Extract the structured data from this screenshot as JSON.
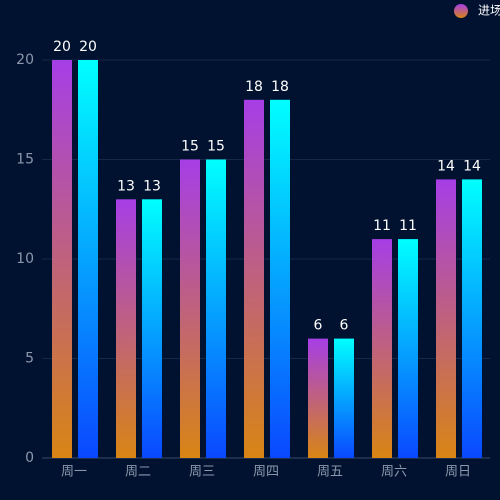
{
  "chart_data": {
    "type": "bar",
    "categories": [
      "周一",
      "周二",
      "周三",
      "周四",
      "周五",
      "周六",
      "周日"
    ],
    "series": [
      {
        "name": "进场",
        "color": [
          "#a63ee6",
          "#d88514"
        ],
        "values": [
          20,
          13,
          15,
          18,
          6,
          11,
          14
        ]
      },
      {
        "color": [
          "#00ffff",
          "#0a48ff"
        ],
        "values": [
          20,
          13,
          15,
          18,
          6,
          11,
          14
        ]
      }
    ],
    "ylim": [
      0,
      20
    ],
    "yticks": [
      0,
      5,
      10,
      15,
      20
    ],
    "grid": true,
    "legend": "top-right"
  }
}
